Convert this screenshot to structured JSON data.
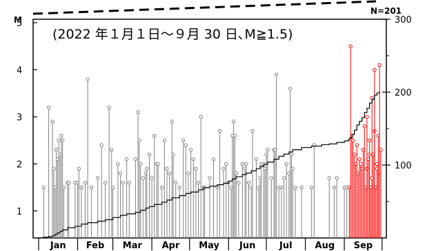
{
  "chart_data": {
    "type": "scatter",
    "title": "(2022 年１月１日～９月 30 日､M≧1.5)",
    "ylabel": "M",
    "y2label": "N=201",
    "ylim": [
      0.5,
      5.0
    ],
    "y2lim": [
      0,
      300
    ],
    "y_ticks": [
      "1",
      "2",
      "3",
      "4",
      "5"
    ],
    "y2_ticks": [
      "100",
      "200",
      "300"
    ],
    "x_months": [
      "Jan",
      "Feb",
      "Mar",
      "Apr",
      "May",
      "Jun",
      "Jul",
      "Aug",
      "Sep"
    ],
    "xlim_days": [
      1,
      273
    ],
    "grid": false,
    "colors": {
      "before_sep_5": "#808080",
      "from_sep_5": "#ff0000",
      "cumulative": "#000000",
      "axes": "#000000"
    },
    "series": [
      {
        "values_gray": [
          [
            5,
            1.5
          ],
          [
            9,
            3.2
          ],
          [
            12,
            2.9
          ],
          [
            13,
            1.9
          ],
          [
            14,
            1.5
          ],
          [
            15,
            2.3
          ],
          [
            16,
            2.1
          ],
          [
            17,
            2.5
          ],
          [
            18,
            2.2
          ],
          [
            19,
            2.6
          ],
          [
            20,
            2.5
          ],
          [
            21,
            1.5
          ],
          [
            24,
            1.6
          ],
          [
            25,
            1.6
          ],
          [
            30,
            1.6
          ],
          [
            32,
            1.6
          ],
          [
            33,
            1.9
          ],
          [
            35,
            1.5
          ],
          [
            38,
            1.6
          ],
          [
            40,
            3.8
          ],
          [
            43,
            1.5
          ],
          [
            48,
            1.7
          ],
          [
            51,
            2.4
          ],
          [
            54,
            1.6
          ],
          [
            57,
            3.2
          ],
          [
            59,
            2.3
          ],
          [
            60,
            1.5
          ],
          [
            64,
            2.0
          ],
          [
            66,
            1.8
          ],
          [
            68,
            1.6
          ],
          [
            71,
            2.1
          ],
          [
            73,
            1.6
          ],
          [
            78,
            2.1
          ],
          [
            80,
            3.1
          ],
          [
            81,
            2.5
          ],
          [
            82,
            2.0
          ],
          [
            84,
            1.7
          ],
          [
            86,
            1.8
          ],
          [
            87,
            1.9
          ],
          [
            89,
            2.2
          ],
          [
            91,
            1.7
          ],
          [
            93,
            2.6
          ],
          [
            95,
            2.0
          ],
          [
            96,
            2.0
          ],
          [
            99,
            1.5
          ],
          [
            101,
            2.5
          ],
          [
            103,
            1.9
          ],
          [
            105,
            1.8
          ],
          [
            107,
            2.9
          ],
          [
            108,
            2.2
          ],
          [
            110,
            1.6
          ],
          [
            113,
            1.5
          ],
          [
            116,
            2.5
          ],
          [
            118,
            2.4
          ],
          [
            120,
            1.8
          ],
          [
            122,
            2.3
          ],
          [
            124,
            2.1
          ],
          [
            126,
            1.9
          ],
          [
            128,
            1.6
          ],
          [
            130,
            3.0
          ],
          [
            132,
            1.5
          ],
          [
            133,
            1.5
          ],
          [
            137,
            1.7
          ],
          [
            140,
            2.1
          ],
          [
            143,
            1.5
          ],
          [
            145,
            2.7
          ],
          [
            148,
            1.9
          ],
          [
            150,
            2.0
          ],
          [
            152,
            1.6
          ],
          [
            154,
            1.5
          ],
          [
            155,
            2.6
          ],
          [
            156,
            2.9
          ],
          [
            157,
            2.6
          ],
          [
            158,
            1.8
          ],
          [
            160,
            1.6
          ],
          [
            163,
            2.0
          ],
          [
            165,
            1.9
          ],
          [
            166,
            2.0
          ],
          [
            168,
            1.6
          ],
          [
            170,
            1.5
          ],
          [
            171,
            2.7
          ],
          [
            174,
            2.1
          ],
          [
            176,
            1.5
          ],
          [
            177,
            1.7
          ],
          [
            178,
            2.0
          ],
          [
            180,
            2.0
          ],
          [
            181,
            1.9
          ],
          [
            182,
            2.2
          ],
          [
            183,
            2.3
          ],
          [
            186,
            1.7
          ],
          [
            188,
            2.3
          ],
          [
            189,
            2.3
          ],
          [
            190,
            3.9
          ],
          [
            192,
            1.5
          ],
          [
            194,
            1.5
          ],
          [
            196,
            1.7
          ],
          [
            198,
            2.0
          ],
          [
            200,
            1.8
          ],
          [
            201,
            3.6
          ],
          [
            202,
            2.2
          ],
          [
            203,
            1.9
          ],
          [
            205,
            1.5
          ],
          [
            210,
            1.5
          ],
          [
            218,
            1.5
          ],
          [
            220,
            2.4
          ],
          [
            232,
            1.7
          ],
          [
            236,
            1.5
          ],
          [
            238,
            1.7
          ],
          [
            244,
            1.5
          ],
          [
            246,
            1.5
          ]
        ],
        "name": "",
        "values_red": [
          [
            248,
            1.5
          ],
          [
            249,
            4.5
          ],
          [
            250,
            2.6
          ],
          [
            251,
            2.5
          ],
          [
            252,
            2.2
          ],
          [
            253,
            2.0
          ],
          [
            254,
            2.4
          ],
          [
            255,
            1.8
          ],
          [
            256,
            2.1
          ],
          [
            257,
            2.0
          ],
          [
            258,
            1.9
          ],
          [
            259,
            2.3
          ],
          [
            260,
            2.8
          ],
          [
            261,
            1.5
          ],
          [
            262,
            1.9
          ],
          [
            263,
            2.1
          ],
          [
            264,
            2.5
          ],
          [
            265,
            1.5
          ],
          [
            266,
            3.4
          ],
          [
            267,
            2.2
          ],
          [
            268,
            2.7
          ],
          [
            269,
            1.5
          ],
          [
            270,
            2.0
          ],
          [
            271,
            1.8
          ],
          [
            272,
            4.1
          ],
          [
            273,
            2.3
          ],
          [
            262,
            3.0
          ],
          [
            264,
            2.2
          ],
          [
            266,
            1.7
          ],
          [
            268,
            4.0
          ],
          [
            270,
            1.9
          ],
          [
            271,
            2.6
          ]
        ]
      }
    ],
    "cumulative": [
      [
        1,
        0
      ],
      [
        5,
        1
      ],
      [
        9,
        2
      ],
      [
        12,
        3
      ],
      [
        14,
        5
      ],
      [
        16,
        7
      ],
      [
        18,
        9
      ],
      [
        20,
        11
      ],
      [
        24,
        14
      ],
      [
        30,
        16
      ],
      [
        35,
        19
      ],
      [
        40,
        21
      ],
      [
        48,
        23
      ],
      [
        54,
        25
      ],
      [
        60,
        28
      ],
      [
        66,
        31
      ],
      [
        71,
        33
      ],
      [
        78,
        35
      ],
      [
        82,
        38
      ],
      [
        86,
        41
      ],
      [
        89,
        43
      ],
      [
        93,
        46
      ],
      [
        99,
        49
      ],
      [
        103,
        52
      ],
      [
        107,
        55
      ],
      [
        113,
        58
      ],
      [
        118,
        61
      ],
      [
        122,
        63
      ],
      [
        128,
        66
      ],
      [
        132,
        69
      ],
      [
        137,
        71
      ],
      [
        143,
        73
      ],
      [
        148,
        75
      ],
      [
        152,
        78
      ],
      [
        155,
        81
      ],
      [
        158,
        84
      ],
      [
        163,
        87
      ],
      [
        166,
        89
      ],
      [
        170,
        92
      ],
      [
        174,
        95
      ],
      [
        177,
        98
      ],
      [
        180,
        101
      ],
      [
        183,
        104
      ],
      [
        188,
        108
      ],
      [
        192,
        112
      ],
      [
        196,
        115
      ],
      [
        200,
        118
      ],
      [
        203,
        121
      ],
      [
        210,
        124
      ],
      [
        218,
        126
      ],
      [
        226,
        128
      ],
      [
        232,
        129
      ],
      [
        238,
        131
      ],
      [
        244,
        133
      ],
      [
        247,
        134
      ],
      [
        248,
        137
      ],
      [
        250,
        142
      ],
      [
        252,
        148
      ],
      [
        254,
        155
      ],
      [
        256,
        160
      ],
      [
        258,
        165
      ],
      [
        260,
        172
      ],
      [
        262,
        178
      ],
      [
        264,
        185
      ],
      [
        266,
        190
      ],
      [
        268,
        196
      ],
      [
        270,
        199
      ],
      [
        272,
        201
      ]
    ]
  }
}
